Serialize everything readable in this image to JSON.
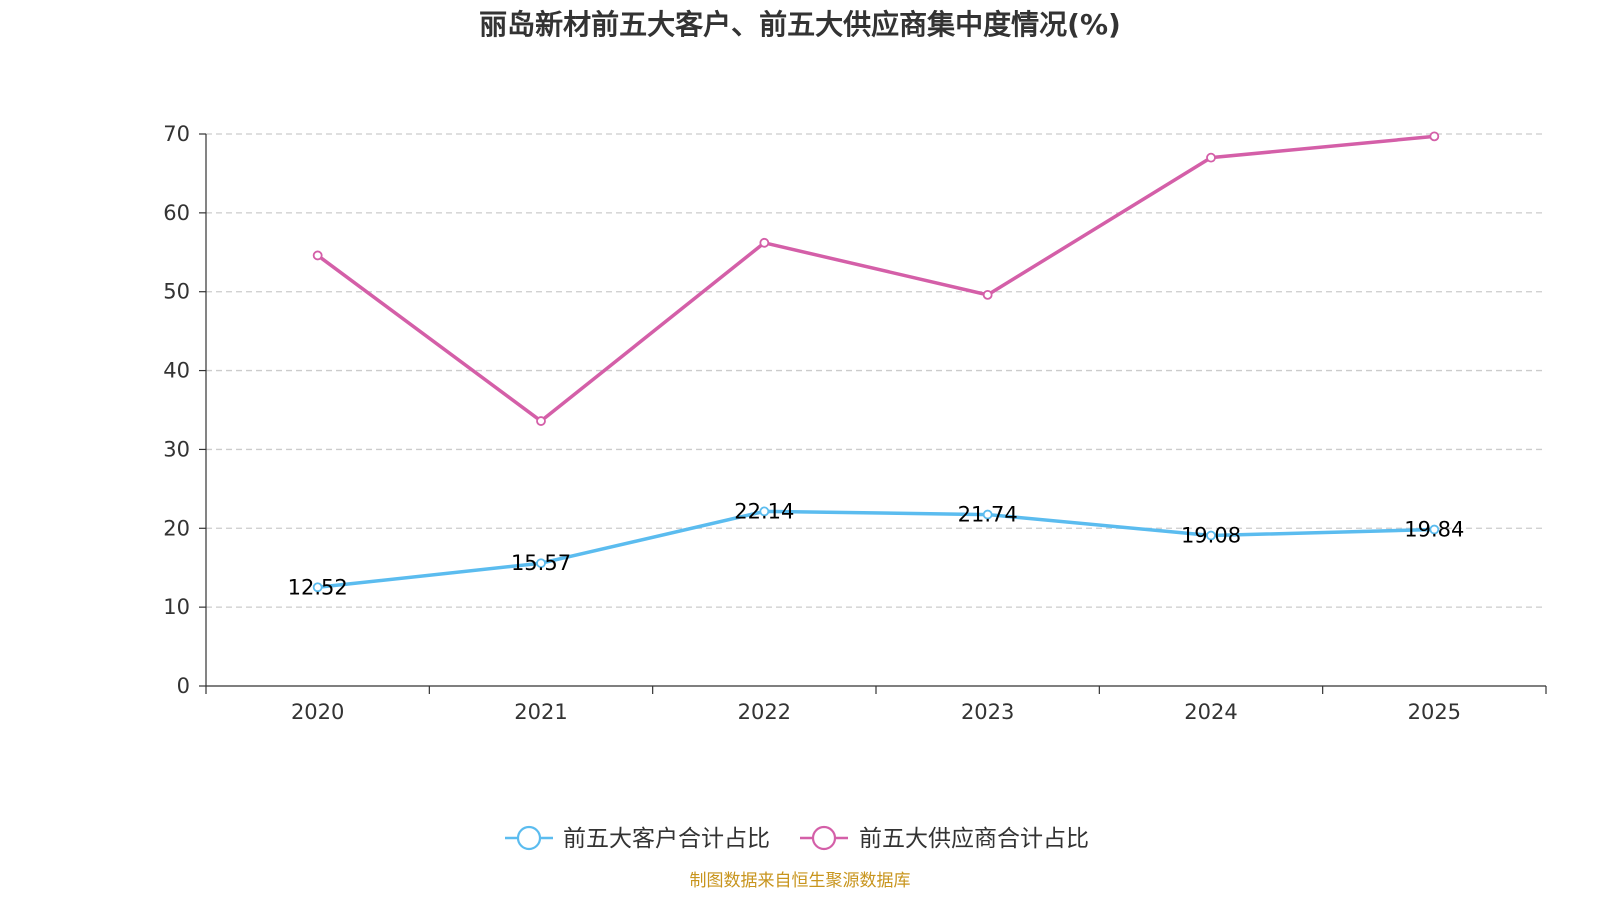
{
  "chart_data": {
    "type": "line",
    "title": "丽岛新材前五大客户、前五大供应商集中度情况(%)",
    "categories": [
      "2020",
      "2021",
      "2022",
      "2023",
      "2024",
      "2025"
    ],
    "ylim": [
      0,
      70
    ],
    "yticks": [
      "0",
      "10",
      "20",
      "30",
      "40",
      "50",
      "60",
      "70"
    ],
    "grid": true,
    "legend_position": "bottom-center",
    "series": [
      {
        "name": "前五大客户合计占比",
        "color": "#5bbcef",
        "values": [
          12.52,
          15.57,
          22.14,
          21.74,
          19.08,
          19.84
        ],
        "labels": [
          "12.52",
          "15.57",
          "22.14",
          "21.74",
          "19.08",
          "19.84"
        ],
        "show_labels": true
      },
      {
        "name": "前五大供应商合计占比",
        "color": "#d45fa8",
        "values": [
          54.6,
          33.6,
          56.2,
          49.6,
          67.0,
          69.7
        ],
        "show_labels": false
      }
    ],
    "source": "制图数据来自恒生聚源数据库"
  }
}
